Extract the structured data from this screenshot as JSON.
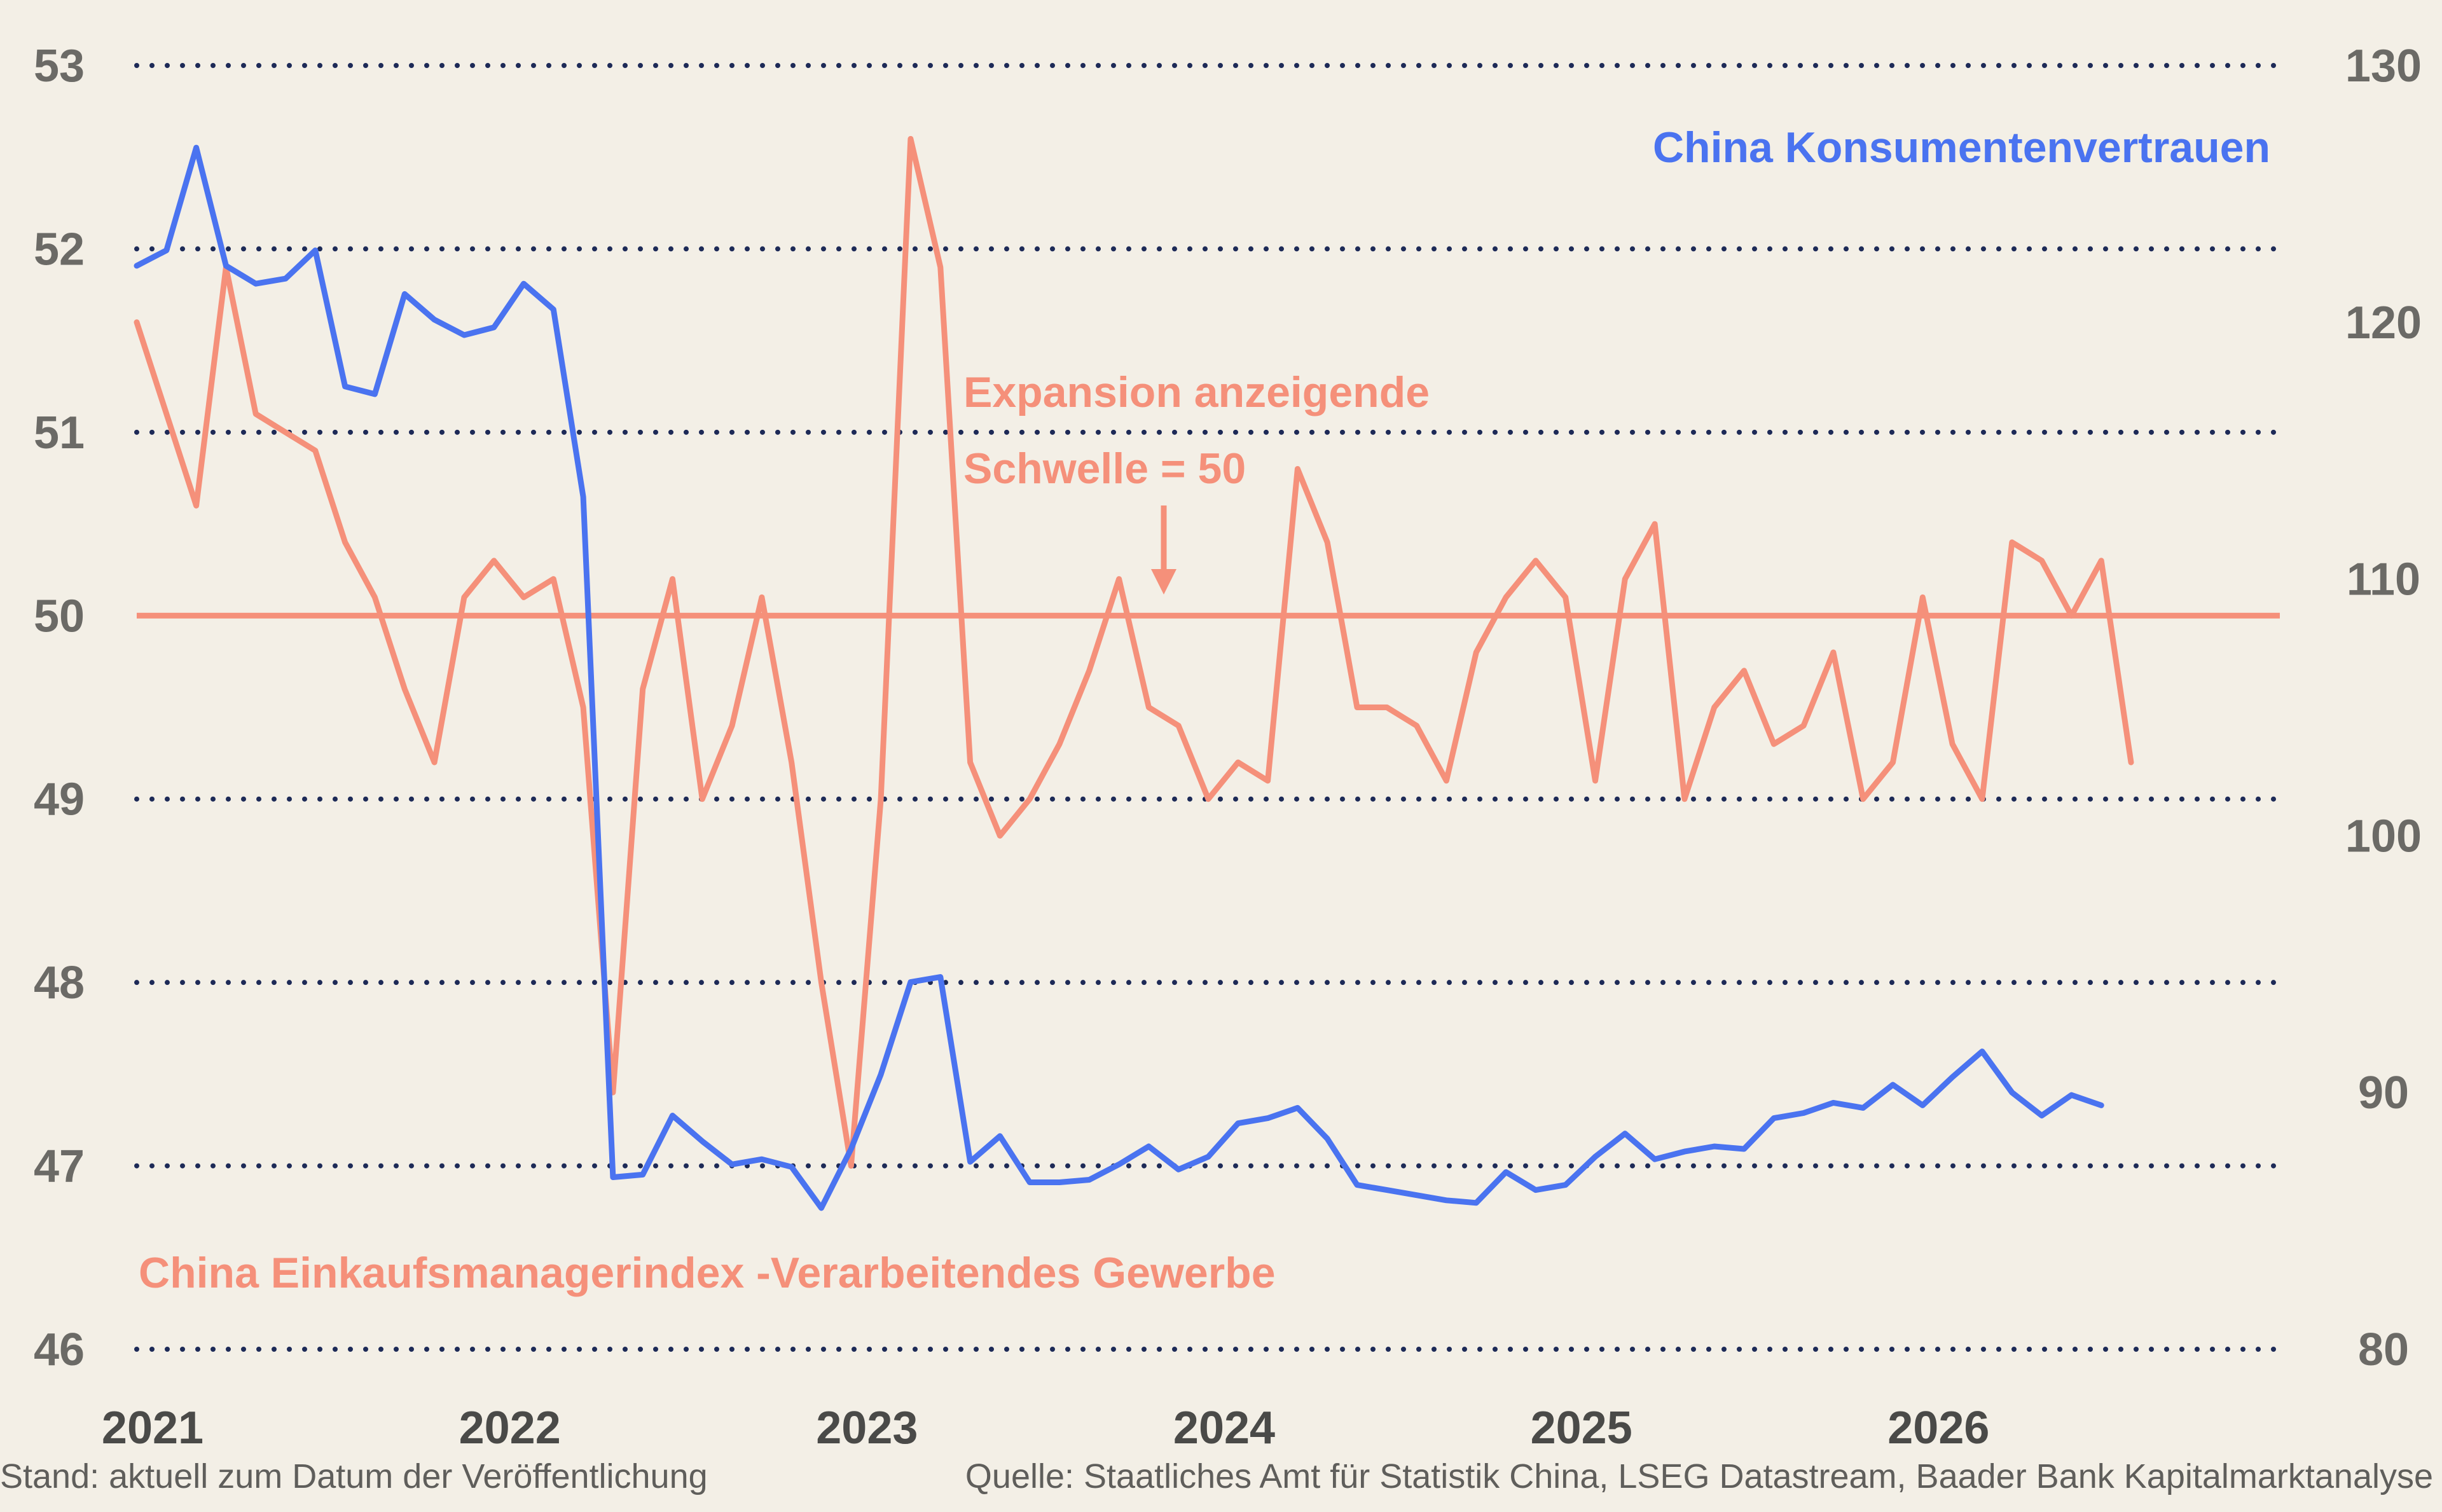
{
  "chart_data": {
    "type": "line",
    "series_labels": {
      "consumer": "China Konsumentenvertrauen",
      "pmi": "China Einkaufsmanagerindex -Verarbeitendes Gewerbe"
    },
    "annotation": {
      "line1": "Expansion anzeigende",
      "line2": "Schwelle = 50"
    },
    "threshold": 50,
    "x_ticks": [
      "2021",
      "2022",
      "2023",
      "2024",
      "2025",
      "2026"
    ],
    "y_left": {
      "ticks": [
        "46",
        "47",
        "48",
        "49",
        "50",
        "51",
        "52",
        "53"
      ],
      "range": [
        46,
        53
      ]
    },
    "y_right": {
      "ticks": [
        "80",
        "90",
        "100",
        "110",
        "120",
        "130"
      ],
      "range": [
        80,
        130
      ]
    },
    "x_range": [
      2021.0,
      2027.0
    ],
    "grid": "dotted horizontal",
    "colors": {
      "consumer": "#4a73f0",
      "pmi": "#f5907a",
      "grid": "#1d2a57",
      "background": "#f3efe6"
    },
    "series": [
      {
        "key": "pmi",
        "axis": "left",
        "start": "2021-01",
        "values": [
          51.6,
          51.1,
          50.6,
          51.9,
          51.1,
          51.0,
          50.9,
          50.4,
          50.1,
          49.6,
          49.2,
          50.1,
          50.3,
          50.1,
          50.2,
          49.5,
          47.4,
          49.6,
          50.2,
          49.0,
          49.4,
          50.1,
          49.2,
          48.0,
          47.0,
          49.0,
          52.6,
          51.9,
          49.2,
          48.8,
          49.0,
          49.3,
          49.7,
          50.2,
          49.5,
          49.4,
          49.0,
          49.2,
          49.1,
          50.8,
          50.4,
          49.5,
          49.5,
          49.4,
          49.1,
          49.8,
          50.1,
          50.3,
          50.1,
          49.1,
          50.2,
          50.5,
          49.0,
          49.5,
          49.7,
          49.3,
          49.4,
          49.8,
          49.0,
          49.2,
          50.1,
          49.3,
          49.0,
          50.4,
          50.3,
          50.0,
          50.3,
          49.2
        ]
      },
      {
        "key": "consumer",
        "axis": "right",
        "start": "2021-01",
        "values": [
          122.2,
          122.8,
          126.8,
          122.2,
          121.5,
          121.7,
          122.8,
          117.5,
          117.2,
          121.1,
          120.1,
          119.5,
          119.8,
          121.5,
          120.5,
          113.2,
          86.7,
          86.8,
          89.1,
          88.1,
          87.2,
          87.4,
          87.1,
          85.5,
          87.8,
          90.7,
          94.3,
          94.5,
          87.3,
          88.3,
          86.5,
          86.5,
          86.6,
          87.2,
          87.9,
          87.0,
          87.5,
          88.8,
          89.0,
          89.4,
          88.2,
          86.4,
          86.2,
          86.0,
          85.8,
          85.7,
          86.9,
          86.2,
          86.4,
          87.5,
          88.4,
          87.4,
          87.7,
          87.9,
          87.8,
          89.0,
          89.2,
          89.6,
          89.4,
          90.3,
          89.5,
          90.6,
          91.6,
          90.0,
          89.1,
          89.9,
          89.5
        ]
      }
    ]
  },
  "footer": {
    "left": "Stand: aktuell zum Datum der Veröffentlichung",
    "right": "Quelle: Staatliches Amt für Statistik China, LSEG Datastream, Baader Bank Kapitalmarktanalyse"
  }
}
